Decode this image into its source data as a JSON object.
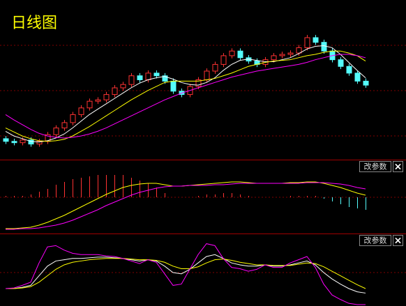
{
  "chart_data": [
    {
      "type": "candlestick",
      "title": "日线图",
      "open": [
        24,
        20,
        18,
        22,
        16,
        20,
        30,
        40,
        48,
        60,
        70,
        80,
        82,
        90,
        100,
        105,
        118,
        112,
        122,
        118,
        110,
        95,
        90,
        102,
        112,
        125,
        135,
        148,
        155,
        145,
        140,
        135,
        142,
        148,
        150,
        152,
        160,
        175,
        168,
        155,
        142,
        132,
        122,
        110
      ],
      "high": [
        28,
        24,
        26,
        26,
        24,
        34,
        44,
        52,
        64,
        74,
        84,
        86,
        94,
        104,
        109,
        122,
        122,
        126,
        126,
        122,
        114,
        99,
        106,
        116,
        129,
        139,
        152,
        159,
        159,
        149,
        144,
        146,
        152,
        154,
        156,
        164,
        179,
        179,
        172,
        159,
        146,
        136,
        126,
        114
      ],
      "low": [
        16,
        14,
        14,
        12,
        12,
        16,
        26,
        36,
        44,
        56,
        66,
        76,
        78,
        86,
        96,
        101,
        108,
        108,
        114,
        106,
        91,
        86,
        86,
        98,
        108,
        121,
        131,
        144,
        141,
        136,
        131,
        131,
        138,
        144,
        146,
        148,
        156,
        164,
        151,
        138,
        128,
        118,
        106,
        100
      ],
      "close": [
        20,
        18,
        22,
        16,
        20,
        30,
        40,
        48,
        60,
        70,
        80,
        82,
        90,
        100,
        105,
        118,
        112,
        122,
        118,
        110,
        95,
        90,
        102,
        112,
        125,
        135,
        148,
        155,
        145,
        140,
        135,
        142,
        148,
        150,
        152,
        160,
        175,
        168,
        155,
        142,
        132,
        122,
        110,
        104
      ],
      "up_color": "#ff3232",
      "down_color": "#54fcfc",
      "series": [
        {
          "color": "#ffffff",
          "values": [
            35,
            28,
            24,
            20,
            19,
            21,
            25,
            31,
            40,
            50,
            60,
            68,
            76,
            84,
            92,
            100,
            107,
            112,
            115,
            117,
            113,
            108,
            105,
            104,
            108,
            115,
            126,
            135,
            141,
            143,
            141,
            139,
            139,
            142,
            145,
            151,
            158,
            162,
            163,
            160,
            150,
            138,
            126,
            115
          ]
        },
        {
          "color": "#ffff00",
          "values": [
            40,
            34,
            28,
            24,
            21,
            20,
            21,
            23,
            28,
            35,
            42,
            50,
            58,
            66,
            74,
            82,
            89,
            96,
            102,
            108,
            110,
            110,
            110,
            110,
            112,
            114,
            118,
            122,
            127,
            132,
            135,
            138,
            140,
            141,
            142,
            145,
            148,
            150,
            153,
            155,
            155,
            152,
            148,
            140
          ]
        },
        {
          "color": "#ff00ff",
          "values": [
            60,
            52,
            45,
            38,
            32,
            28,
            26,
            25,
            26,
            28,
            31,
            35,
            40,
            46,
            52,
            58,
            64,
            70,
            76,
            82,
            87,
            92,
            96,
            100,
            104,
            108,
            112,
            116,
            119,
            122,
            125,
            127,
            129,
            131,
            133,
            135,
            138,
            142,
            145,
            148,
            150,
            150,
            148,
            145
          ]
        }
      ],
      "ylim": [
        0,
        200
      ]
    },
    {
      "type": "macd",
      "button_label": "改参数",
      "close_label": "×",
      "bars": [
        2,
        2,
        2,
        4,
        8,
        12,
        18,
        22,
        26,
        28,
        30,
        32,
        32,
        32,
        32,
        28,
        24,
        20,
        14,
        6,
        0,
        0,
        0,
        2,
        4,
        4,
        6,
        6,
        4,
        2,
        0,
        0,
        0,
        0,
        2,
        2,
        2,
        2,
        -2,
        -6,
        -10,
        -14,
        -16,
        -18
      ],
      "up_color": "#ff3232",
      "down_color": "#54fcfc",
      "series": [
        {
          "color": "#ffff00",
          "values": [
            -45,
            -45,
            -44,
            -43,
            -40,
            -36,
            -31,
            -26,
            -20,
            -14,
            -8,
            -2,
            4,
            9,
            14,
            17,
            19,
            20,
            20,
            18,
            16,
            16,
            17,
            18,
            19,
            20,
            21,
            22,
            22,
            21,
            20,
            20,
            20,
            20,
            21,
            21,
            22,
            22,
            20,
            17,
            14,
            10,
            6,
            3
          ]
        },
        {
          "color": "#ff00ff",
          "values": [
            -46,
            -46,
            -45,
            -45,
            -44,
            -42,
            -40,
            -37,
            -33,
            -28,
            -23,
            -18,
            -12,
            -7,
            -2,
            3,
            7,
            10,
            13,
            15,
            16,
            16,
            17,
            17,
            17,
            18,
            18,
            19,
            20,
            20,
            20,
            20,
            20,
            20,
            20,
            20,
            21,
            21,
            21,
            20,
            19,
            17,
            14,
            12
          ]
        }
      ],
      "ylim": [
        -50,
        50
      ]
    },
    {
      "type": "line",
      "button_label": "改参数",
      "close_label": "×",
      "series": [
        {
          "color": "#ffffff",
          "values": [
            25,
            25,
            27,
            30,
            45,
            60,
            68,
            70,
            72,
            72,
            73,
            74,
            74,
            73,
            72,
            70,
            68,
            70,
            68,
            60,
            50,
            48,
            55,
            65,
            75,
            78,
            72,
            65,
            62,
            60,
            60,
            62,
            60,
            60,
            62,
            65,
            68,
            62,
            50,
            40,
            32,
            25,
            20,
            18
          ]
        },
        {
          "color": "#ffff00",
          "values": [
            25,
            25,
            26,
            28,
            35,
            45,
            55,
            62,
            66,
            68,
            70,
            71,
            72,
            72,
            72,
            71,
            70,
            70,
            69,
            66,
            60,
            56,
            56,
            59,
            65,
            70,
            71,
            69,
            66,
            64,
            62,
            62,
            61,
            61,
            61,
            63,
            65,
            64,
            59,
            52,
            45,
            38,
            31,
            25
          ]
        },
        {
          "color": "#ff00ff",
          "values": [
            25,
            26,
            30,
            35,
            65,
            90,
            92,
            85,
            80,
            78,
            78,
            78,
            76,
            75,
            72,
            68,
            64,
            70,
            66,
            48,
            30,
            32,
            55,
            78,
            95,
            92,
            72,
            58,
            56,
            52,
            55,
            62,
            58,
            58,
            65,
            70,
            75,
            58,
            32,
            15,
            8,
            2,
            0,
            0
          ]
        }
      ],
      "ylim": [
        0,
        100
      ]
    }
  ]
}
